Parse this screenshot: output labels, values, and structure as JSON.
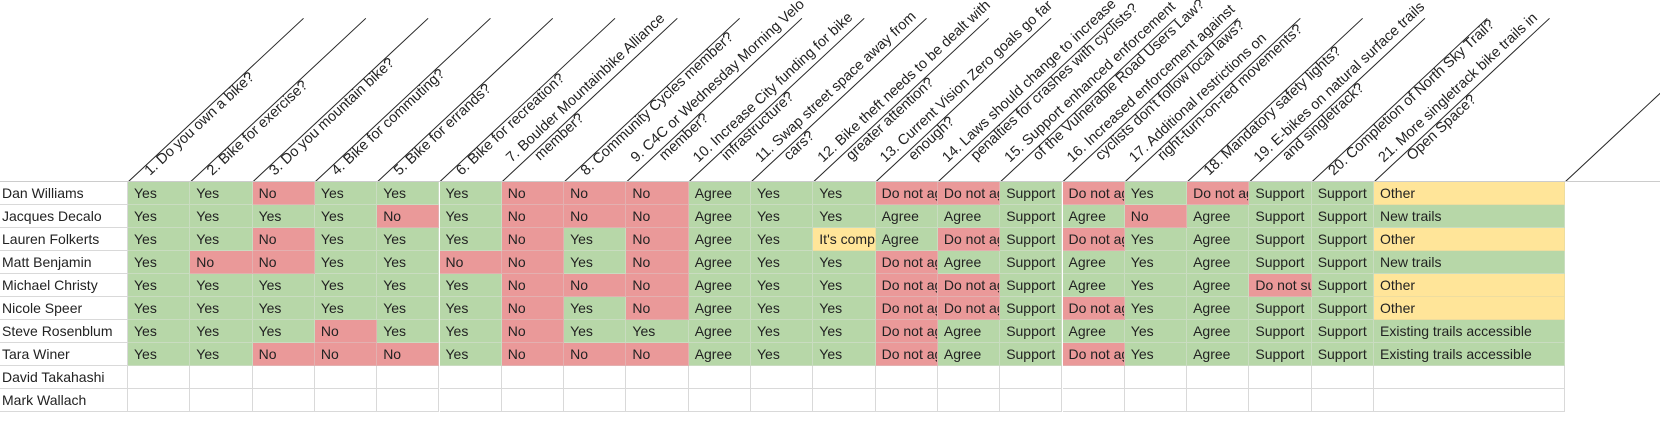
{
  "questions": [
    [
      "1. Do you own a bike?"
    ],
    [
      "2. Bike for exercise?"
    ],
    [
      "3. Do you mountain bike?"
    ],
    [
      "4. Bike for commuting?"
    ],
    [
      "5. Bike for errands?"
    ],
    [
      "6. Bike for recreation?"
    ],
    [
      "7. Boulder Mountainbike Alliance",
      "member?"
    ],
    [
      "8. Community Cycles member?"
    ],
    [
      "9. C4C or Wednesday Morning Velo",
      "member?"
    ],
    [
      "10. Increase City funding for bike",
      "infrastructure?"
    ],
    [
      "11. Swap street space away from",
      "cars?"
    ],
    [
      "12. Bike theft needs to be dealt with",
      "greater attention?"
    ],
    [
      "13. Current Vision Zero goals go far",
      "enough?"
    ],
    [
      "14. Laws should change to increase",
      "penalties for crashes with cyclists?"
    ],
    [
      "15. Support enhanced enforcement",
      "of the Vulnerable Road Users Law?"
    ],
    [
      "16. Increased enforcement against",
      "cyclists don't follow local laws?"
    ],
    [
      "17. Additional restrictions on",
      "right-turn-on-red movements?"
    ],
    [
      "18. Mandatory safety lights?"
    ],
    [
      "19. E-bikes on natural surface trails",
      "and singletrack?"
    ],
    [
      "20. Completion of North Sky Trail?"
    ],
    [
      "21. More singletrack bike trails in",
      "Open Space?"
    ]
  ],
  "rows": [
    {
      "name": "Dan Williams",
      "cells": [
        [
          "Yes",
          "g"
        ],
        [
          "Yes",
          "g"
        ],
        [
          "No",
          "r"
        ],
        [
          "Yes",
          "g"
        ],
        [
          "Yes",
          "g"
        ],
        [
          "Yes",
          "g"
        ],
        [
          "No",
          "r"
        ],
        [
          "No",
          "r"
        ],
        [
          "No",
          "r"
        ],
        [
          "Agree",
          "g"
        ],
        [
          "Yes",
          "g"
        ],
        [
          "Yes",
          "g"
        ],
        [
          "Do not agree",
          "r"
        ],
        [
          "Do not agree",
          "r"
        ],
        [
          "Support",
          "g"
        ],
        [
          "Do not agree",
          "r"
        ],
        [
          "Yes",
          "g"
        ],
        [
          "Do not agree",
          "r"
        ],
        [
          "Support",
          "g"
        ],
        [
          "Support",
          "g"
        ],
        [
          "Other",
          "y"
        ]
      ]
    },
    {
      "name": "Jacques Decalo",
      "cells": [
        [
          "Yes",
          "g"
        ],
        [
          "Yes",
          "g"
        ],
        [
          "Yes",
          "g"
        ],
        [
          "Yes",
          "g"
        ],
        [
          "No",
          "r"
        ],
        [
          "Yes",
          "g"
        ],
        [
          "No",
          "r"
        ],
        [
          "No",
          "r"
        ],
        [
          "No",
          "r"
        ],
        [
          "Agree",
          "g"
        ],
        [
          "Yes",
          "g"
        ],
        [
          "Yes",
          "g"
        ],
        [
          "Agree",
          "g"
        ],
        [
          "Agree",
          "g"
        ],
        [
          "Support",
          "g"
        ],
        [
          "Agree",
          "g"
        ],
        [
          "No",
          "r"
        ],
        [
          "Agree",
          "g"
        ],
        [
          "Support",
          "g"
        ],
        [
          "Support",
          "g"
        ],
        [
          "New trails",
          "g"
        ]
      ]
    },
    {
      "name": "Lauren Folkerts",
      "cells": [
        [
          "Yes",
          "g"
        ],
        [
          "Yes",
          "g"
        ],
        [
          "No",
          "r"
        ],
        [
          "Yes",
          "g"
        ],
        [
          "Yes",
          "g"
        ],
        [
          "Yes",
          "g"
        ],
        [
          "No",
          "r"
        ],
        [
          "Yes",
          "g"
        ],
        [
          "No",
          "r"
        ],
        [
          "Agree",
          "g"
        ],
        [
          "Yes",
          "g"
        ],
        [
          "It's complicated",
          "y"
        ],
        [
          "Agree",
          "g"
        ],
        [
          "Do not agree",
          "r"
        ],
        [
          "Support",
          "g"
        ],
        [
          "Do not agree",
          "r"
        ],
        [
          "Yes",
          "g"
        ],
        [
          "Agree",
          "g"
        ],
        [
          "Support",
          "g"
        ],
        [
          "Support",
          "g"
        ],
        [
          "Other",
          "y"
        ]
      ]
    },
    {
      "name": "Matt Benjamin",
      "cells": [
        [
          "Yes",
          "g"
        ],
        [
          "No",
          "r"
        ],
        [
          "No",
          "r"
        ],
        [
          "Yes",
          "g"
        ],
        [
          "Yes",
          "g"
        ],
        [
          "No",
          "r"
        ],
        [
          "No",
          "r"
        ],
        [
          "Yes",
          "g"
        ],
        [
          "No",
          "r"
        ],
        [
          "Agree",
          "g"
        ],
        [
          "Yes",
          "g"
        ],
        [
          "Yes",
          "g"
        ],
        [
          "Do not agree",
          "r"
        ],
        [
          "Agree",
          "g"
        ],
        [
          "Support",
          "g"
        ],
        [
          "Agree",
          "g"
        ],
        [
          "Yes",
          "g"
        ],
        [
          "Agree",
          "g"
        ],
        [
          "Support",
          "g"
        ],
        [
          "Support",
          "g"
        ],
        [
          "New trails",
          "g"
        ]
      ]
    },
    {
      "name": "Michael Christy",
      "cells": [
        [
          "Yes",
          "g"
        ],
        [
          "Yes",
          "g"
        ],
        [
          "Yes",
          "g"
        ],
        [
          "Yes",
          "g"
        ],
        [
          "Yes",
          "g"
        ],
        [
          "Yes",
          "g"
        ],
        [
          "No",
          "r"
        ],
        [
          "No",
          "r"
        ],
        [
          "No",
          "r"
        ],
        [
          "Agree",
          "g"
        ],
        [
          "Yes",
          "g"
        ],
        [
          "Yes",
          "g"
        ],
        [
          "Do not agree",
          "r"
        ],
        [
          "Do not agree",
          "r"
        ],
        [
          "Support",
          "g"
        ],
        [
          "Agree",
          "g"
        ],
        [
          "Yes",
          "g"
        ],
        [
          "Agree",
          "g"
        ],
        [
          "Do not support",
          "r"
        ],
        [
          "Support",
          "g"
        ],
        [
          "Other",
          "y"
        ]
      ]
    },
    {
      "name": "Nicole Speer",
      "cells": [
        [
          "Yes",
          "g"
        ],
        [
          "Yes",
          "g"
        ],
        [
          "Yes",
          "g"
        ],
        [
          "Yes",
          "g"
        ],
        [
          "Yes",
          "g"
        ],
        [
          "Yes",
          "g"
        ],
        [
          "No",
          "r"
        ],
        [
          "Yes",
          "g"
        ],
        [
          "No",
          "r"
        ],
        [
          "Agree",
          "g"
        ],
        [
          "Yes",
          "g"
        ],
        [
          "Yes",
          "g"
        ],
        [
          "Do not agree",
          "r"
        ],
        [
          "Do not agree",
          "r"
        ],
        [
          "Support",
          "g"
        ],
        [
          "Do not agree",
          "r"
        ],
        [
          "Yes",
          "g"
        ],
        [
          "Agree",
          "g"
        ],
        [
          "Support",
          "g"
        ],
        [
          "Support",
          "g"
        ],
        [
          "Other",
          "y"
        ]
      ]
    },
    {
      "name": "Steve Rosenblum",
      "cells": [
        [
          "Yes",
          "g"
        ],
        [
          "Yes",
          "g"
        ],
        [
          "Yes",
          "g"
        ],
        [
          "No",
          "r"
        ],
        [
          "Yes",
          "g"
        ],
        [
          "Yes",
          "g"
        ],
        [
          "No",
          "r"
        ],
        [
          "Yes",
          "g"
        ],
        [
          "Yes",
          "g"
        ],
        [
          "Agree",
          "g"
        ],
        [
          "Yes",
          "g"
        ],
        [
          "Yes",
          "g"
        ],
        [
          "Do not agree",
          "r"
        ],
        [
          "Agree",
          "g"
        ],
        [
          "Support",
          "g"
        ],
        [
          "Agree",
          "g"
        ],
        [
          "Yes",
          "g"
        ],
        [
          "Agree",
          "g"
        ],
        [
          "Support",
          "g"
        ],
        [
          "Support",
          "g"
        ],
        [
          "Existing trails accessible",
          "g"
        ]
      ]
    },
    {
      "name": "Tara Winer",
      "cells": [
        [
          "Yes",
          "g"
        ],
        [
          "Yes",
          "g"
        ],
        [
          "No",
          "r"
        ],
        [
          "No",
          "r"
        ],
        [
          "No",
          "r"
        ],
        [
          "Yes",
          "g"
        ],
        [
          "No",
          "r"
        ],
        [
          "No",
          "r"
        ],
        [
          "No",
          "r"
        ],
        [
          "Agree",
          "g"
        ],
        [
          "Yes",
          "g"
        ],
        [
          "Yes",
          "g"
        ],
        [
          "Do not agree",
          "r"
        ],
        [
          "Agree",
          "g"
        ],
        [
          "Support",
          "g"
        ],
        [
          "Do not agree",
          "r"
        ],
        [
          "Yes",
          "g"
        ],
        [
          "Agree",
          "g"
        ],
        [
          "Support",
          "g"
        ],
        [
          "Support",
          "g"
        ],
        [
          "Existing trails accessible",
          "g"
        ]
      ]
    },
    {
      "name": "David Takahashi",
      "cells": []
    },
    {
      "name": "Mark Wallach",
      "cells": []
    }
  ],
  "colors": {
    "green": "#b7d7a8",
    "red": "#ea9999",
    "yellow": "#ffe599"
  }
}
